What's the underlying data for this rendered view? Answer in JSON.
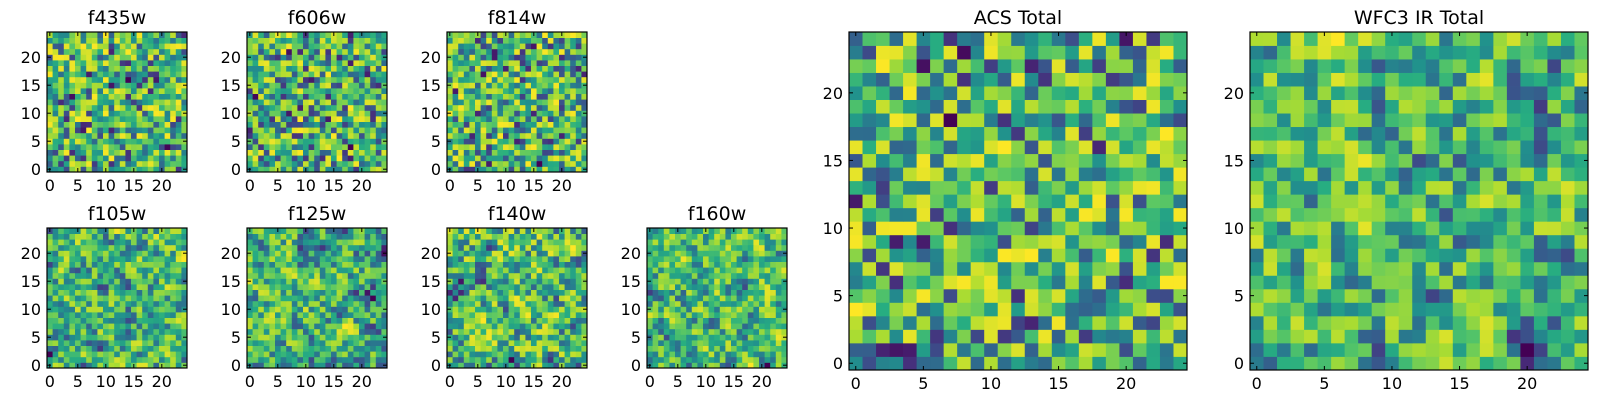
{
  "chart_data": [
    {
      "type": "heatmap",
      "title": "f435w",
      "grid_size": 25,
      "xticks": [
        "0",
        "5",
        "10",
        "15",
        "20"
      ],
      "yticks": [
        "0",
        "5",
        "10",
        "15",
        "20"
      ],
      "seed": 11,
      "smooth": 0,
      "colormap": "viridis",
      "xlabel": "",
      "ylabel": ""
    },
    {
      "type": "heatmap",
      "title": "f606w",
      "grid_size": 25,
      "xticks": [
        "0",
        "5",
        "10",
        "15",
        "20"
      ],
      "yticks": [
        "0",
        "5",
        "10",
        "15",
        "20"
      ],
      "seed": 23,
      "smooth": 0,
      "colormap": "viridis",
      "xlabel": "",
      "ylabel": ""
    },
    {
      "type": "heatmap",
      "title": "f814w",
      "grid_size": 25,
      "xticks": [
        "0",
        "5",
        "10",
        "15",
        "20"
      ],
      "yticks": [
        "0",
        "5",
        "10",
        "15",
        "20"
      ],
      "seed": 37,
      "smooth": 0,
      "colormap": "viridis",
      "xlabel": "",
      "ylabel": ""
    },
    {
      "type": "heatmap",
      "title": "f105w",
      "grid_size": 25,
      "xticks": [
        "0",
        "5",
        "10",
        "15",
        "20"
      ],
      "yticks": [
        "0",
        "5",
        "10",
        "15",
        "20"
      ],
      "seed": 41,
      "smooth": 1,
      "colormap": "viridis",
      "xlabel": "",
      "ylabel": ""
    },
    {
      "type": "heatmap",
      "title": "f125w",
      "grid_size": 25,
      "xticks": [
        "0",
        "5",
        "10",
        "15",
        "20"
      ],
      "yticks": [
        "0",
        "5",
        "10",
        "15",
        "20"
      ],
      "seed": 53,
      "smooth": 1,
      "colormap": "viridis",
      "xlabel": "",
      "ylabel": ""
    },
    {
      "type": "heatmap",
      "title": "f140w",
      "grid_size": 25,
      "xticks": [
        "0",
        "5",
        "10",
        "15",
        "20"
      ],
      "yticks": [
        "0",
        "5",
        "10",
        "15",
        "20"
      ],
      "seed": 67,
      "smooth": 1,
      "colormap": "viridis",
      "xlabel": "",
      "ylabel": ""
    },
    {
      "type": "heatmap",
      "title": "f160w",
      "grid_size": 25,
      "xticks": [
        "0",
        "5",
        "10",
        "15",
        "20"
      ],
      "yticks": [
        "0",
        "5",
        "10",
        "15",
        "20"
      ],
      "seed": 79,
      "smooth": 1,
      "colormap": "viridis",
      "xlabel": "",
      "ylabel": ""
    },
    {
      "type": "heatmap",
      "title": "ACS Total",
      "grid_size": 25,
      "xticks": [
        "0",
        "5",
        "10",
        "15",
        "20"
      ],
      "yticks": [
        "0",
        "5",
        "10",
        "15",
        "20"
      ],
      "seed": 97,
      "smooth": 0,
      "colormap": "viridis",
      "xlabel": "",
      "ylabel": ""
    },
    {
      "type": "heatmap",
      "title": "WFC3 IR Total",
      "grid_size": 25,
      "xticks": [
        "0",
        "5",
        "10",
        "15",
        "20"
      ],
      "yticks": [
        "0",
        "5",
        "10",
        "15",
        "20"
      ],
      "seed": 131,
      "smooth": 1,
      "colormap": "viridis",
      "xlabel": "",
      "ylabel": ""
    }
  ]
}
